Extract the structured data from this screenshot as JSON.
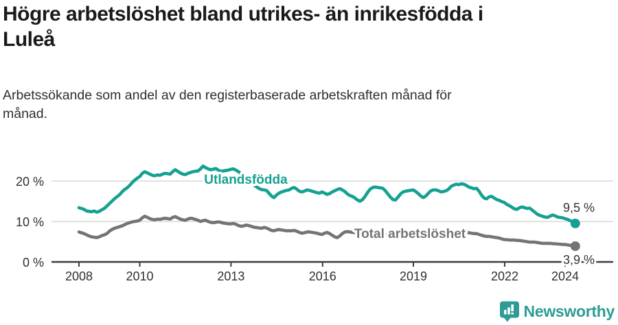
{
  "title": {
    "line1": "Högre arbetslöshet bland utrikes- än inrikesfödda i",
    "line2": "Luleå"
  },
  "subtitle": {
    "line1": "Arbetssökande som andel av den registerbaserade arbetskraften månad för",
    "line2": "månad."
  },
  "branding": {
    "name": "Newsworthy",
    "color": "#2e9c94"
  },
  "chart_data": {
    "type": "line",
    "title": "Högre arbetslöshet bland utrikes- än inrikesfödda i Luleå",
    "subtitle": "Arbetssökande som andel av den registerbaserade arbetskraften månad för månad.",
    "x_unit": "month",
    "x_start": "2008-01",
    "x_end": "2024-05",
    "x_tick_labels": [
      "2008",
      "2010",
      "2013",
      "2016",
      "2019",
      "2022",
      "2024"
    ],
    "y_tick_labels": [
      "0 %",
      "10 %",
      "20 %"
    ],
    "ylim": [
      0,
      26
    ],
    "grid": "horizontal-only",
    "legend_position": "inline-labels-on-lines",
    "colors": {
      "utlandsfodda": "#14a191",
      "total": "#747474",
      "gridline": "#d8d8d8",
      "axis": "#3c3c3c"
    },
    "series": [
      {
        "name": "Utlandsfödda",
        "color": "#14a191",
        "end_label": "9,5 %",
        "end_value": 9.5,
        "values": [
          13.4,
          13.2,
          13.0,
          12.6,
          12.5,
          12.4,
          12.6,
          12.3,
          12.5,
          12.9,
          13.2,
          13.8,
          14.4,
          15.0,
          15.6,
          16.1,
          16.6,
          17.3,
          17.9,
          18.3,
          18.9,
          19.6,
          20.2,
          20.7,
          21.1,
          21.9,
          22.3,
          22.0,
          21.7,
          21.4,
          21.3,
          21.5,
          21.4,
          21.7,
          21.9,
          21.8,
          21.7,
          22.3,
          22.8,
          22.4,
          22.0,
          21.7,
          21.6,
          21.9,
          22.1,
          22.3,
          22.4,
          22.5,
          23.0,
          23.7,
          23.3,
          23.0,
          22.8,
          22.9,
          23.1,
          22.7,
          22.4,
          22.5,
          22.6,
          22.7,
          22.9,
          23.0,
          22.7,
          22.3,
          21.8,
          21.2,
          20.6,
          20.1,
          19.6,
          19.1,
          18.6,
          18.2,
          17.9,
          17.8,
          17.7,
          17.0,
          16.3,
          15.9,
          16.5,
          17.0,
          17.3,
          17.5,
          17.7,
          17.8,
          18.2,
          18.4,
          18.0,
          17.5,
          17.3,
          17.5,
          17.8,
          17.7,
          17.5,
          17.3,
          17.1,
          17.0,
          17.3,
          17.0,
          16.7,
          16.9,
          17.3,
          17.6,
          17.9,
          18.1,
          17.8,
          17.4,
          16.8,
          16.4,
          16.2,
          15.8,
          15.3,
          15.0,
          15.4,
          16.2,
          17.2,
          18.0,
          18.4,
          18.5,
          18.4,
          18.3,
          18.2,
          17.6,
          16.8,
          16.0,
          15.4,
          15.3,
          16.0,
          16.8,
          17.3,
          17.5,
          17.6,
          17.7,
          17.8,
          17.4,
          16.9,
          16.3,
          15.9,
          16.3,
          17.0,
          17.6,
          17.8,
          17.8,
          17.6,
          17.3,
          17.4,
          17.6,
          18.0,
          18.7,
          19.0,
          19.2,
          19.1,
          19.3,
          19.2,
          18.9,
          18.5,
          18.3,
          18.1,
          18.2,
          17.5,
          16.5,
          15.8,
          15.6,
          16.1,
          16.2,
          15.8,
          15.4,
          15.2,
          14.9,
          14.7,
          14.2,
          13.9,
          13.5,
          13.1,
          13.0,
          13.4,
          13.6,
          13.4,
          13.2,
          13.3,
          12.8,
          12.3,
          11.8,
          11.5,
          11.3,
          11.1,
          11.0,
          11.3,
          11.6,
          11.4,
          11.1,
          11.0,
          10.9,
          10.7,
          10.5,
          10.2,
          9.9,
          9.5
        ]
      },
      {
        "name": "Total arbetslöshet",
        "color": "#747474",
        "end_label": "3,9 %",
        "end_value": 3.9,
        "values": [
          7.4,
          7.2,
          7.0,
          6.7,
          6.4,
          6.2,
          6.1,
          6.0,
          6.2,
          6.5,
          6.7,
          7.0,
          7.6,
          8.0,
          8.3,
          8.5,
          8.7,
          8.9,
          9.2,
          9.5,
          9.7,
          9.9,
          10.0,
          10.1,
          10.3,
          10.9,
          11.3,
          11.0,
          10.7,
          10.5,
          10.4,
          10.6,
          10.5,
          10.7,
          10.8,
          10.7,
          10.6,
          11.0,
          11.2,
          10.9,
          10.6,
          10.4,
          10.3,
          10.6,
          10.8,
          10.7,
          10.5,
          10.3,
          10.0,
          10.2,
          10.3,
          10.0,
          9.8,
          9.7,
          9.8,
          9.9,
          9.8,
          9.6,
          9.5,
          9.4,
          9.4,
          9.5,
          9.3,
          9.0,
          8.8,
          8.9,
          9.1,
          9.0,
          8.8,
          8.6,
          8.5,
          8.4,
          8.3,
          8.5,
          8.4,
          8.1,
          7.8,
          7.7,
          7.9,
          8.0,
          7.9,
          7.8,
          7.7,
          7.7,
          7.7,
          7.8,
          7.6,
          7.3,
          7.1,
          7.2,
          7.4,
          7.4,
          7.3,
          7.2,
          7.1,
          6.9,
          6.8,
          7.1,
          7.3,
          7.0,
          6.6,
          6.2,
          6.0,
          6.4,
          7.0,
          7.4,
          7.5,
          7.4,
          7.3,
          7.2,
          7.0,
          6.8,
          6.6,
          6.5,
          6.7,
          6.9,
          7.0,
          7.0,
          6.9,
          6.9,
          6.8,
          6.7,
          6.5,
          6.3,
          6.2,
          6.1,
          6.3,
          6.5,
          6.6,
          6.6,
          6.5,
          6.5,
          6.6,
          6.5,
          6.4,
          6.2,
          6.1,
          6.2,
          6.4,
          6.5,
          6.6,
          6.6,
          6.5,
          6.5,
          6.6,
          6.7,
          7.0,
          7.3,
          7.5,
          7.6,
          7.7,
          7.7,
          7.6,
          7.4,
          7.2,
          7.1,
          7.0,
          7.0,
          6.8,
          6.6,
          6.4,
          6.3,
          6.3,
          6.2,
          6.1,
          6.0,
          5.9,
          5.7,
          5.5,
          5.5,
          5.4,
          5.4,
          5.4,
          5.3,
          5.3,
          5.2,
          5.1,
          5.0,
          4.9,
          4.9,
          4.9,
          4.8,
          4.7,
          4.6,
          4.6,
          4.6,
          4.6,
          4.5,
          4.5,
          4.4,
          4.4,
          4.3,
          4.3,
          4.2,
          4.1,
          4.0,
          3.9
        ]
      }
    ]
  }
}
